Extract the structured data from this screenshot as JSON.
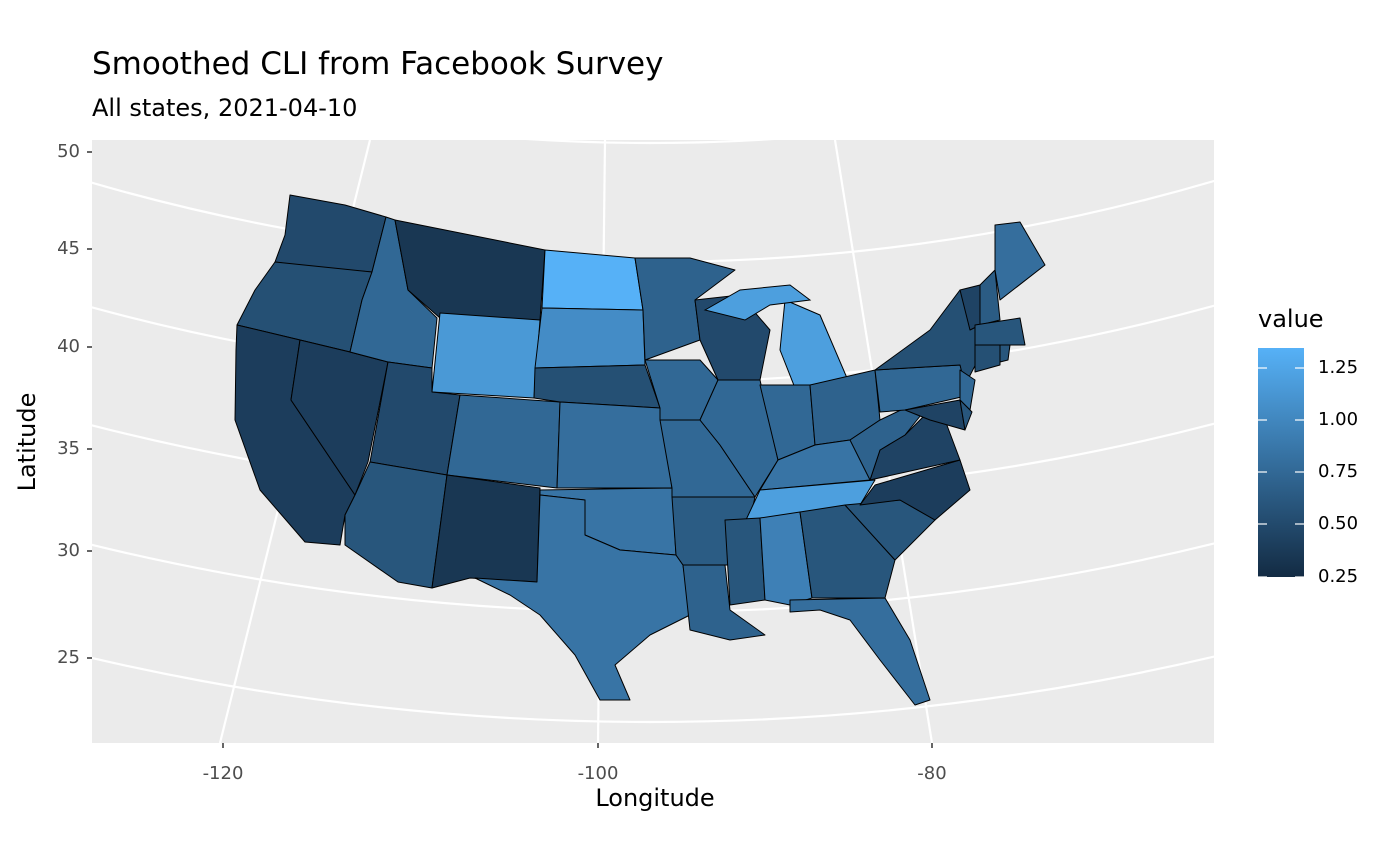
{
  "title": "Smoothed CLI from Facebook Survey",
  "subtitle": "All states, 2021-04-10",
  "chart_data": {
    "type": "choropleth",
    "title": "Smoothed CLI from Facebook Survey",
    "subtitle": "All states, 2021-04-10",
    "xlabel": "Longitude",
    "ylabel": "Latitude",
    "x_ticks": [
      "-120",
      "-100",
      "-80"
    ],
    "y_ticks": [
      "50",
      "45",
      "40",
      "35",
      "30",
      "25"
    ],
    "legend": {
      "title": "value",
      "placement": "right",
      "ticks": [
        "1.25",
        "1.00",
        "0.75",
        "0.50",
        "0.25"
      ],
      "range": [
        0.25,
        1.35
      ],
      "low_color": "#132B43",
      "high_color": "#56B1F7"
    },
    "states": {
      "WA": 0.5,
      "OR": 0.55,
      "CA": 0.4,
      "NV": 0.4,
      "ID": 0.75,
      "MT": 0.35,
      "WY": 1.15,
      "ND": 1.35,
      "SD": 1.05,
      "NE": 0.55,
      "CO": 0.75,
      "UT": 0.5,
      "AZ": 0.6,
      "NM": 0.35,
      "KS": 0.8,
      "OK": 0.85,
      "TX": 0.85,
      "MN": 0.7,
      "IA": 0.75,
      "MO": 0.75,
      "AR": 0.65,
      "LA": 0.7,
      "WI": 0.5,
      "IL": 0.75,
      "MI": 1.2,
      "IN": 0.75,
      "OH": 0.7,
      "KY": 0.85,
      "TN": 1.2,
      "MS": 0.6,
      "AL": 0.95,
      "GA": 0.6,
      "FL": 0.8,
      "SC": 0.6,
      "NC": 0.4,
      "VA": 0.45,
      "WV": 0.7,
      "PA": 0.75,
      "NY": 0.55,
      "NJ": 0.75,
      "DE": 0.6,
      "MD": 0.45,
      "VT": 0.45,
      "NH": 0.65,
      "ME": 0.8,
      "MA": 0.6,
      "CT": 0.55,
      "RI": 0.6
    }
  }
}
